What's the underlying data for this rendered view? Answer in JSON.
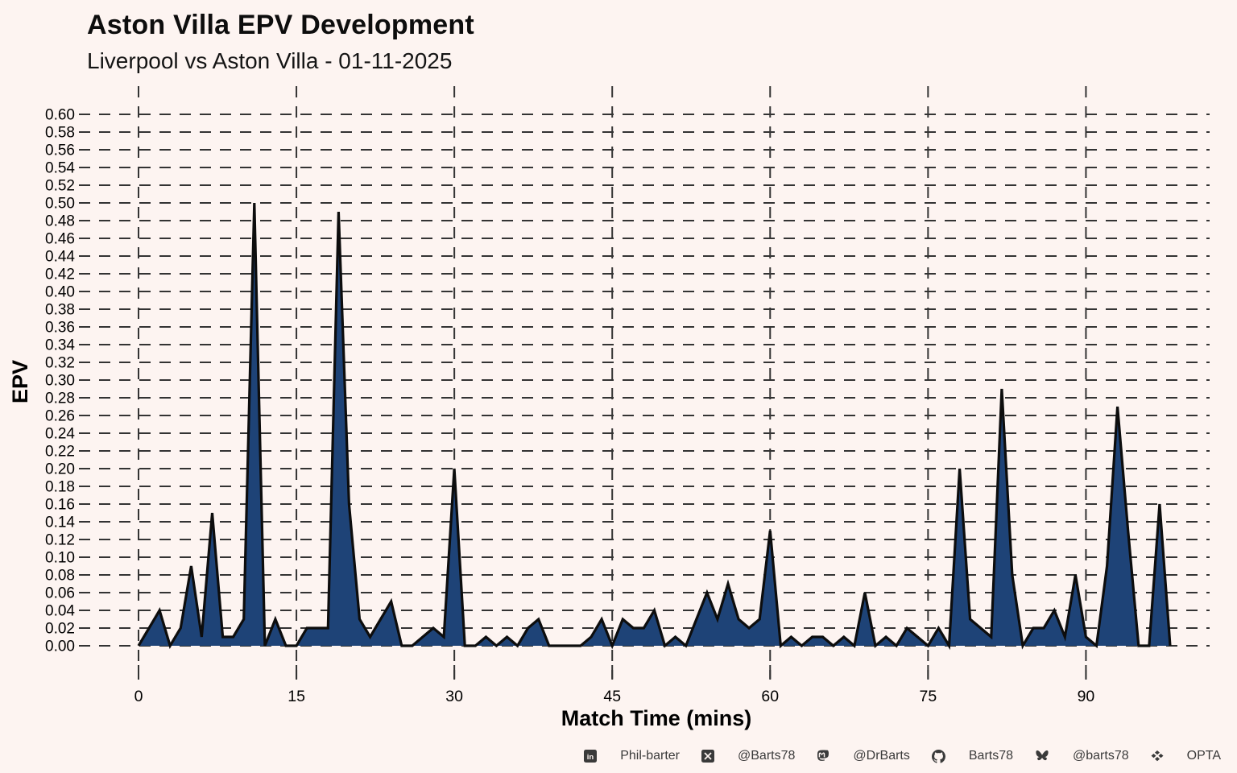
{
  "title": "Aston Villa EPV Development",
  "subtitle": "Liverpool vs Aston Villa - 01-11-2025",
  "chart_data": {
    "type": "area",
    "title": "Aston Villa EPV Development",
    "subtitle": "Liverpool vs Aston Villa - 01-11-2025",
    "xlabel": "Match Time (mins)",
    "ylabel": "EPV",
    "xlim": [
      0,
      98
    ],
    "ylim": [
      0,
      0.6
    ],
    "x_ticks": [
      0,
      15,
      30,
      45,
      60,
      75,
      90
    ],
    "y_tick_step": 0.02,
    "grid": "dashed-both-axes",
    "legend": "none",
    "x": [
      0,
      1,
      2,
      3,
      4,
      5,
      6,
      7,
      8,
      9,
      10,
      11,
      12,
      13,
      14,
      15,
      16,
      17,
      18,
      19,
      20,
      21,
      22,
      23,
      24,
      25,
      26,
      27,
      28,
      29,
      30,
      31,
      32,
      33,
      34,
      35,
      36,
      37,
      38,
      39,
      40,
      41,
      42,
      43,
      44,
      45,
      46,
      47,
      48,
      49,
      50,
      51,
      52,
      53,
      54,
      55,
      56,
      57,
      58,
      59,
      60,
      61,
      62,
      63,
      64,
      65,
      66,
      67,
      68,
      69,
      70,
      71,
      72,
      73,
      74,
      75,
      76,
      77,
      78,
      79,
      80,
      81,
      82,
      83,
      84,
      85,
      86,
      87,
      88,
      89,
      90,
      91,
      92,
      93,
      94,
      95,
      96,
      97,
      98
    ],
    "values": [
      0.0,
      0.02,
      0.04,
      0.0,
      0.02,
      0.09,
      0.01,
      0.15,
      0.01,
      0.01,
      0.03,
      0.5,
      0.0,
      0.03,
      0.0,
      0.0,
      0.02,
      0.02,
      0.02,
      0.49,
      0.16,
      0.03,
      0.01,
      0.03,
      0.05,
      0.0,
      0.0,
      0.01,
      0.02,
      0.01,
      0.2,
      0.0,
      0.0,
      0.01,
      0.0,
      0.01,
      0.0,
      0.02,
      0.03,
      0.0,
      0.0,
      0.0,
      0.0,
      0.01,
      0.03,
      0.0,
      0.03,
      0.02,
      0.02,
      0.04,
      0.0,
      0.01,
      0.0,
      0.03,
      0.06,
      0.03,
      0.07,
      0.03,
      0.02,
      0.03,
      0.13,
      0.0,
      0.01,
      0.0,
      0.01,
      0.01,
      0.0,
      0.01,
      0.0,
      0.06,
      0.0,
      0.01,
      0.0,
      0.02,
      0.01,
      0.0,
      0.02,
      0.0,
      0.2,
      0.03,
      0.02,
      0.01,
      0.29,
      0.08,
      0.0,
      0.02,
      0.02,
      0.04,
      0.01,
      0.08,
      0.01,
      0.0,
      0.09,
      0.27,
      0.13,
      0.0,
      0.0,
      0.16,
      0.0
    ],
    "colors": {
      "background": "#fdf4f1",
      "area_fill": "#1e4377",
      "line": "#0d0d0d",
      "grid": "#333333",
      "tick_text": "#000000"
    }
  },
  "footer": {
    "items": [
      {
        "icon": "linkedin-icon",
        "label": "Phil-barter"
      },
      {
        "icon": "x-icon",
        "label": "@Barts78"
      },
      {
        "icon": "mastodon-icon",
        "label": "@DrBarts"
      },
      {
        "icon": "github-icon",
        "label": "Barts78"
      },
      {
        "icon": "bluesky-icon",
        "label": "@barts78"
      },
      {
        "icon": "dropbox-icon",
        "label": "OPTA"
      }
    ]
  }
}
